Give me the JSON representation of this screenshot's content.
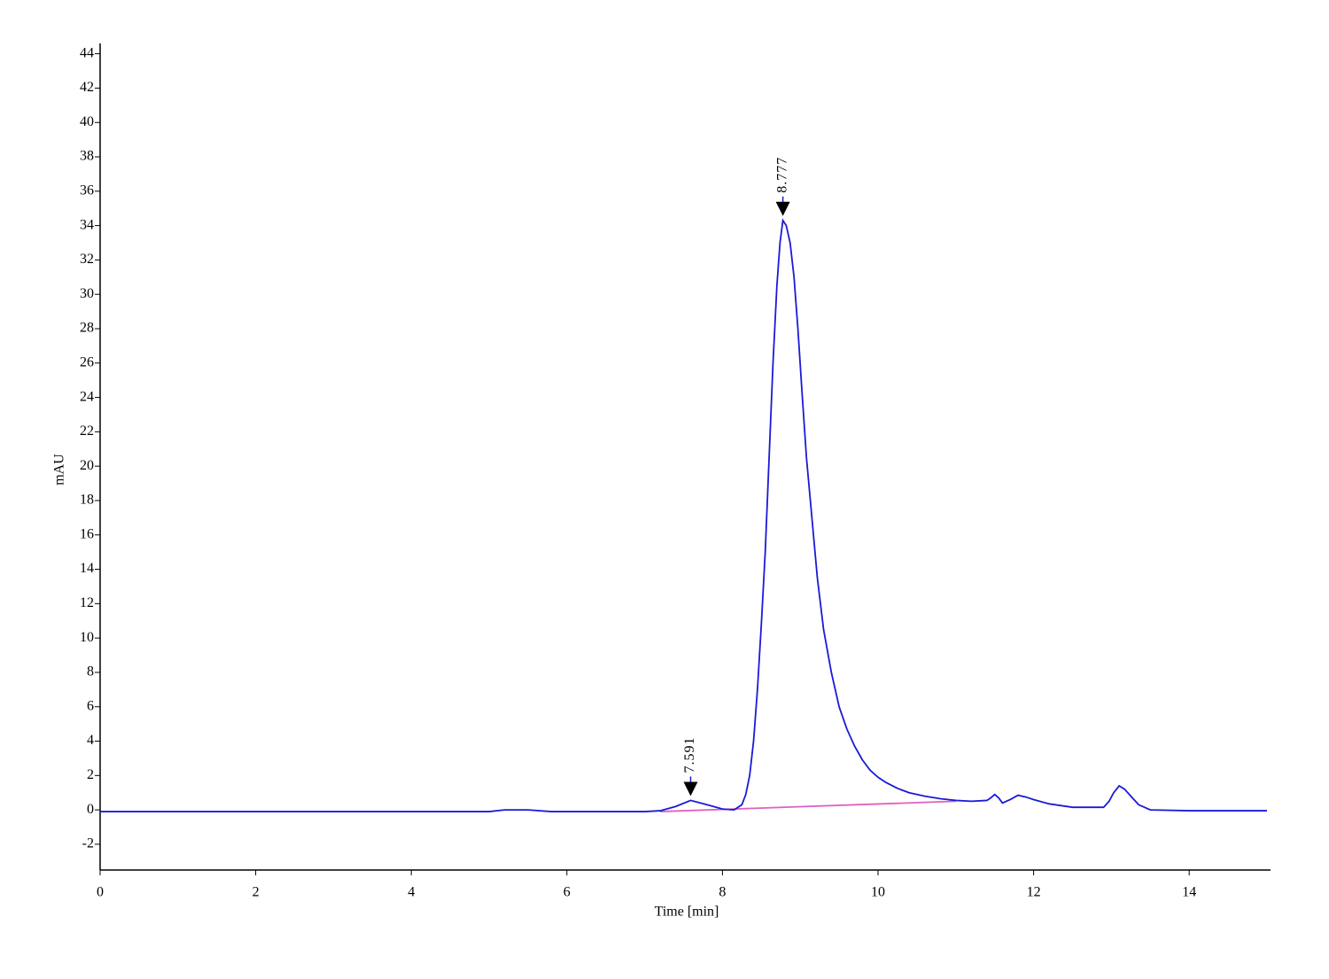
{
  "chart_data": {
    "type": "line",
    "xlabel": "Time [min]",
    "ylabel": "mAU",
    "xlim": [
      0,
      15
    ],
    "ylim": [
      -3.5,
      44.6
    ],
    "xticks": [
      0,
      2,
      4,
      6,
      8,
      10,
      12,
      14
    ],
    "yticks": [
      -2,
      0,
      2,
      4,
      6,
      8,
      10,
      12,
      14,
      16,
      18,
      20,
      22,
      24,
      26,
      28,
      30,
      32,
      34,
      36,
      38,
      40,
      42,
      44
    ],
    "series": [
      {
        "color": "#1a1ad8",
        "x": [
          0,
          5.0,
          5.2,
          5.5,
          5.8,
          7.0,
          7.2,
          7.4,
          7.591,
          7.8,
          8.0,
          8.15,
          8.25,
          8.3,
          8.35,
          8.4,
          8.45,
          8.5,
          8.55,
          8.6,
          8.65,
          8.7,
          8.74,
          8.777,
          8.82,
          8.87,
          8.92,
          8.97,
          9.02,
          9.08,
          9.15,
          9.22,
          9.3,
          9.4,
          9.5,
          9.6,
          9.7,
          9.8,
          9.9,
          10.0,
          10.1,
          10.25,
          10.4,
          10.6,
          10.8,
          11.0,
          11.2,
          11.4,
          11.45,
          11.5,
          11.55,
          11.6,
          11.7,
          11.8,
          11.9,
          12.0,
          12.2,
          12.5,
          12.9,
          12.97,
          13.03,
          13.1,
          13.17,
          13.25,
          13.35,
          13.5,
          14,
          15
        ],
        "values": [
          -0.1,
          -0.1,
          0.0,
          0.0,
          -0.1,
          -0.1,
          -0.05,
          0.2,
          0.55,
          0.3,
          0.05,
          0.0,
          0.3,
          0.9,
          2.0,
          4.0,
          7.0,
          10.8,
          15.0,
          20.5,
          26.0,
          30.5,
          33.0,
          34.3,
          34.0,
          33.0,
          31.0,
          28.0,
          24.5,
          20.5,
          17.0,
          13.5,
          10.5,
          8.0,
          6.0,
          4.7,
          3.7,
          2.9,
          2.3,
          1.9,
          1.6,
          1.25,
          1.0,
          0.8,
          0.65,
          0.55,
          0.5,
          0.55,
          0.7,
          0.9,
          0.7,
          0.4,
          0.6,
          0.85,
          0.75,
          0.6,
          0.35,
          0.15,
          0.15,
          0.5,
          1.0,
          1.4,
          1.2,
          0.8,
          0.3,
          0.0,
          -0.05,
          -0.05
        ]
      },
      {
        "color": "#e060c0",
        "x": [
          7.2,
          11.0
        ],
        "values": [
          -0.1,
          0.5
        ]
      }
    ],
    "peaks": {
      "x": [
        7.591,
        8.777
      ],
      "y": [
        0.55,
        34.3
      ]
    }
  }
}
